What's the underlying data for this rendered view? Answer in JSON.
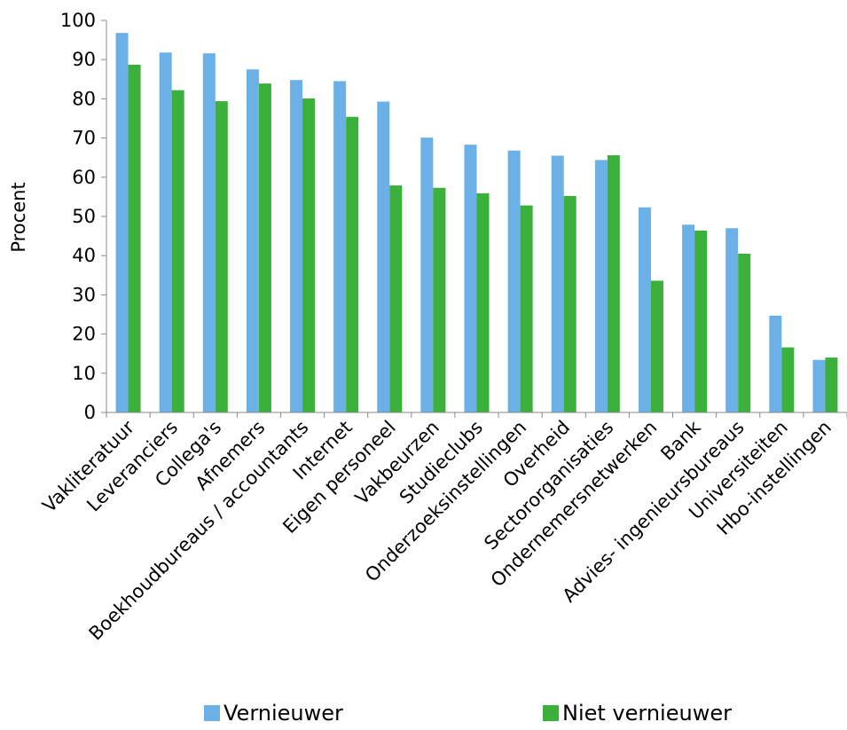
{
  "chart_data": {
    "type": "bar",
    "ylabel": "Procent",
    "ylim": [
      0,
      100
    ],
    "yticks": [
      0,
      10,
      20,
      30,
      40,
      50,
      60,
      70,
      80,
      90,
      100
    ],
    "grid": false,
    "legend_position": "bottom",
    "categories": [
      "Vakliteratuur",
      "Leveranciers",
      "Collega's",
      "Afnemers",
      "Boekhoudbureaus / accountants",
      "Internet",
      "Eigen personeel",
      "Vakbeurzen",
      "Studieclubs",
      "Onderzoeksinstellingen",
      "Overheid",
      "Sectororganisaties",
      "Ondernemersnetwerken",
      "Bank",
      "Advies- ingenieursbureaus",
      "Universiteiten",
      "Hbo-instellingen"
    ],
    "series": [
      {
        "name": "Vernieuwer",
        "color": "#6CB0E8",
        "values": [
          96.8,
          91.8,
          91.6,
          87.5,
          84.8,
          84.5,
          79.3,
          70.1,
          68.3,
          66.8,
          65.5,
          64.4,
          52.3,
          47.9,
          47.0,
          24.7,
          13.4
        ]
      },
      {
        "name": "Niet vernieuwer",
        "color": "#3BB03B",
        "values": [
          88.7,
          82.2,
          79.4,
          83.9,
          80.1,
          75.4,
          57.9,
          57.3,
          55.9,
          52.8,
          55.2,
          65.6,
          33.6,
          46.4,
          40.5,
          16.6,
          14.0
        ]
      }
    ]
  }
}
